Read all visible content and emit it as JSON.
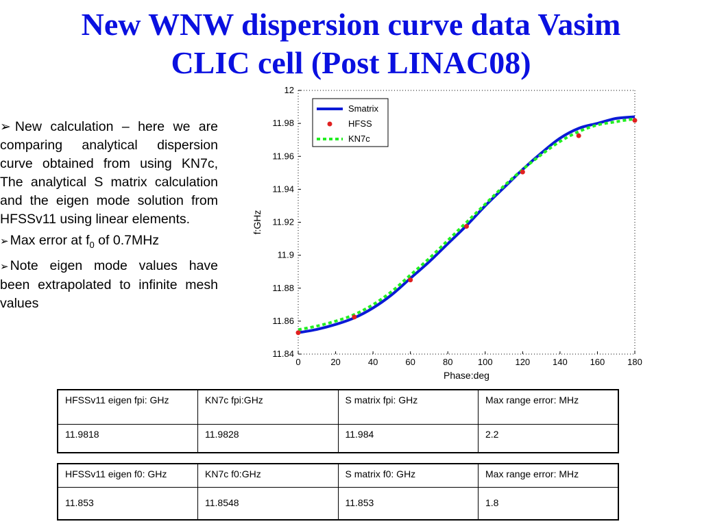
{
  "title": {
    "line1": "New WNW dispersion curve data Vasim",
    "line2": "CLIC cell (Post LINAC08)"
  },
  "bullets": [
    {
      "id": "b1",
      "text": "New calculation – here we are comparing analytical dispersion curve obtained from using KN7c, The analytical S matrix calculation and the eigen mode solution from HFSSv11 using linear elements."
    },
    {
      "id": "b2",
      "text_before": "Max error at f",
      "subscript": "0",
      "text_after": " of 0.7MHz"
    },
    {
      "id": "b3",
      "text": "Note eigen mode values have been extrapolated to infinite mesh values"
    }
  ],
  "chart_data": {
    "type": "line",
    "xlabel": "Phase:deg",
    "ylabel": "f:GHz",
    "xlim": [
      0,
      180
    ],
    "ylim": [
      11.84,
      12
    ],
    "x_ticks": [
      0,
      20,
      40,
      60,
      80,
      100,
      120,
      140,
      160,
      180
    ],
    "x_tick_labels": [
      "0",
      "20",
      "40",
      "60",
      "80",
      "100",
      "120",
      "140",
      "160",
      "180"
    ],
    "y_ticks": [
      11.84,
      11.86,
      11.88,
      11.9,
      11.92,
      11.94,
      11.96,
      11.98,
      12
    ],
    "y_tick_labels": [
      "11.84",
      "11.86",
      "11.88",
      "11.9",
      "11.92",
      "11.94",
      "11.96",
      "11.98",
      "12"
    ],
    "grid": false,
    "legend_position": "top-right",
    "series": [
      {
        "name": "Smatrix",
        "style": "solid",
        "color": "#0a1ad6",
        "x": [
          0,
          10,
          20,
          30,
          40,
          50,
          60,
          70,
          80,
          90,
          100,
          110,
          120,
          130,
          140,
          150,
          160,
          170,
          180
        ],
        "y": [
          11.853,
          11.855,
          11.858,
          11.862,
          11.868,
          11.876,
          11.886,
          11.896,
          11.907,
          11.918,
          11.93,
          11.941,
          11.952,
          11.962,
          11.971,
          11.977,
          11.98,
          11.983,
          11.984
        ]
      },
      {
        "name": "HFSS",
        "style": "markers",
        "color": "#e02020",
        "x": [
          0,
          30,
          60,
          90,
          120,
          150,
          180
        ],
        "y": [
          11.853,
          11.8625,
          11.885,
          11.9175,
          11.9505,
          11.9725,
          11.9818
        ]
      },
      {
        "name": "KN7c",
        "style": "dotted",
        "color": "#22ee22",
        "x": [
          0,
          10,
          20,
          30,
          40,
          50,
          60,
          70,
          80,
          90,
          100,
          110,
          120,
          130,
          140,
          150,
          160,
          170,
          180
        ],
        "y": [
          11.8548,
          11.857,
          11.86,
          11.864,
          11.87,
          11.878,
          11.888,
          11.898,
          11.909,
          11.92,
          11.931,
          11.942,
          11.952,
          11.961,
          11.969,
          11.975,
          11.979,
          11.981,
          11.9828
        ]
      }
    ]
  },
  "tables": [
    {
      "headers": [
        "HFSSv11 eigen fpi: GHz",
        "KN7c fpi:GHz",
        "S matrix fpi: GHz",
        "Max range error: MHz"
      ],
      "values": [
        "11.9818",
        "11.9828",
        "11.984",
        "2.2"
      ]
    },
    {
      "headers": [
        "HFSSv11 eigen f0: GHz",
        "KN7c f0:GHz",
        "S matrix f0: GHz",
        "Max range error: MHz"
      ],
      "values": [
        "11.853",
        "11.8548",
        "11.853",
        "1.8"
      ]
    }
  ]
}
